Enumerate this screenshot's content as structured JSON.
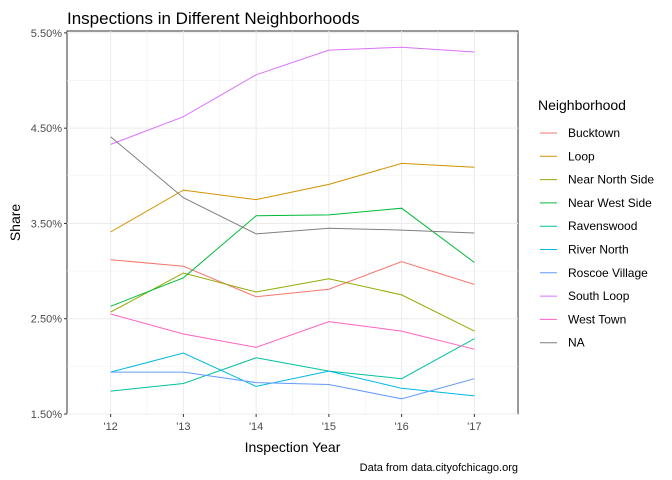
{
  "chart_data": {
    "type": "line",
    "title": "Inspections in Different Neighborhoods",
    "xlabel": "Inspection Year",
    "ylabel": "Share",
    "caption": "Data from data.cityofchicago.org",
    "legend_title": "Neighborhood",
    "legend_position": "right",
    "grid": true,
    "x": [
      "'12",
      "'13",
      "'14",
      "'15",
      "'16",
      "'17"
    ],
    "xlim": [
      -0.6,
      5.6
    ],
    "ylim": [
      1.5,
      5.52
    ],
    "yticks": [
      1.5,
      2.5,
      3.5,
      4.5,
      5.5
    ],
    "ytick_labels": [
      "1.50%",
      "2.50%",
      "3.50%",
      "4.50%",
      "5.50%"
    ],
    "series": [
      {
        "name": "Bucktown",
        "color": "#F8766D",
        "values": [
          3.12,
          3.05,
          2.73,
          2.81,
          3.1,
          2.86
        ]
      },
      {
        "name": "Loop",
        "color": "#D39200",
        "values": [
          3.41,
          3.85,
          3.75,
          3.91,
          4.13,
          4.09
        ]
      },
      {
        "name": "Near North Side",
        "color": "#93AA00",
        "values": [
          2.57,
          2.98,
          2.78,
          2.92,
          2.75,
          2.37
        ]
      },
      {
        "name": "Near West Side",
        "color": "#00BA38",
        "values": [
          2.63,
          2.93,
          3.58,
          3.59,
          3.66,
          3.09
        ]
      },
      {
        "name": "Ravenswood",
        "color": "#00C19F",
        "values": [
          1.74,
          1.82,
          2.09,
          1.95,
          1.87,
          2.29
        ]
      },
      {
        "name": "River North",
        "color": "#00B9E3",
        "values": [
          1.94,
          2.14,
          1.79,
          1.95,
          1.77,
          1.69
        ]
      },
      {
        "name": "Roscoe Village",
        "color": "#619CFF",
        "values": [
          1.94,
          1.94,
          1.83,
          1.81,
          1.66,
          1.87
        ]
      },
      {
        "name": "South Loop",
        "color": "#DB72FB",
        "values": [
          4.33,
          4.62,
          5.06,
          5.32,
          5.35,
          5.3
        ]
      },
      {
        "name": "West Town",
        "color": "#FF61C3",
        "values": [
          2.55,
          2.34,
          2.2,
          2.47,
          2.37,
          2.18
        ]
      },
      {
        "name": "NA",
        "color": "#7F7F7F",
        "values": [
          4.41,
          3.77,
          3.39,
          3.45,
          3.43,
          3.4
        ]
      }
    ]
  }
}
